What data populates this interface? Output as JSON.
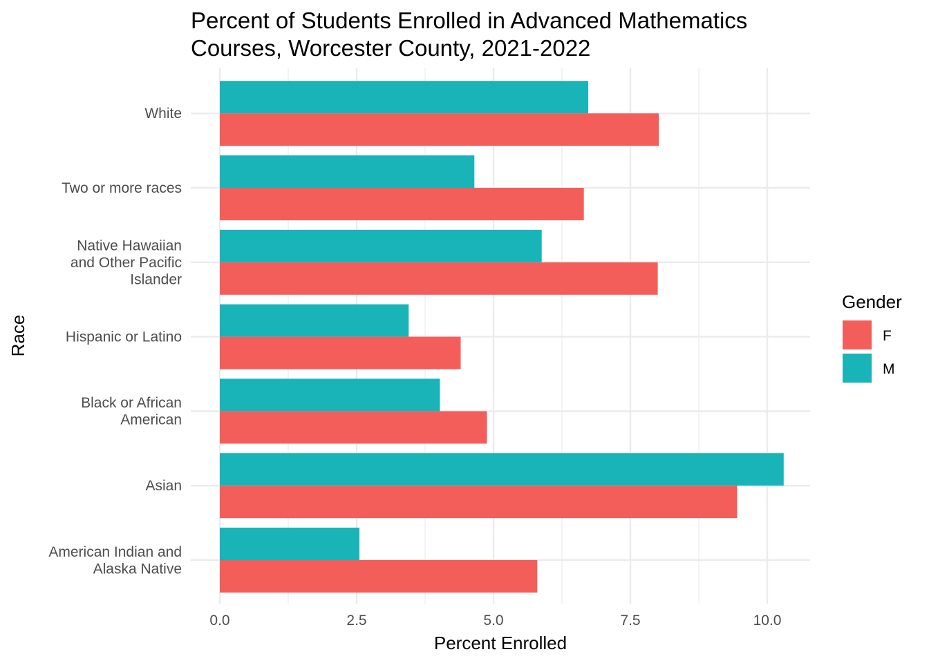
{
  "chart_data": {
    "type": "bar",
    "orientation": "horizontal",
    "title": [
      "Percent of Students Enrolled in Advanced Mathematics",
      "Courses, Worcester County, 2021-2022"
    ],
    "xlabel": "Percent Enrolled",
    "ylabel": "Race",
    "xlim": [
      0,
      10.8
    ],
    "xticks": [
      0,
      2.5,
      5,
      7.5,
      10
    ],
    "xtick_labels": [
      "0.0",
      "2.5",
      "5.0",
      "7.5",
      "10.0"
    ],
    "grid": true,
    "legend": {
      "title": "Gender",
      "placement": "right"
    },
    "categories": [
      [
        "American Indian and",
        "Alaska Native"
      ],
      [
        "Asian"
      ],
      [
        "Black or African",
        "American"
      ],
      [
        "Hispanic or Latino"
      ],
      [
        "Native Hawaiian",
        "and Other Pacific",
        "Islander"
      ],
      [
        "Two or more races"
      ],
      [
        "White"
      ]
    ],
    "series": [
      {
        "name": "F",
        "color": "#F35E5A",
        "values": [
          5.8,
          9.45,
          4.88,
          4.4,
          8.0,
          6.65,
          8.02
        ]
      },
      {
        "name": "M",
        "color": "#18B4B8",
        "values": [
          2.55,
          10.3,
          4.02,
          3.45,
          5.88,
          4.65,
          6.73
        ]
      }
    ]
  }
}
